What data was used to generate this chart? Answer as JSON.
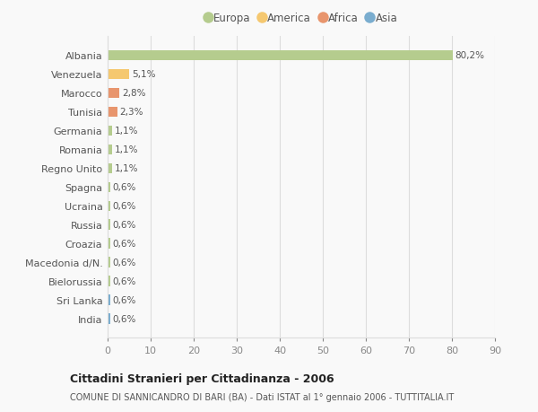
{
  "countries": [
    "Albania",
    "Venezuela",
    "Marocco",
    "Tunisia",
    "Germania",
    "Romania",
    "Regno Unito",
    "Spagna",
    "Ucraina",
    "Russia",
    "Croazia",
    "Macedonia d/N.",
    "Bielorussia",
    "Sri Lanka",
    "India"
  ],
  "values": [
    80.2,
    5.1,
    2.8,
    2.3,
    1.1,
    1.1,
    1.1,
    0.6,
    0.6,
    0.6,
    0.6,
    0.6,
    0.6,
    0.6,
    0.6
  ],
  "labels": [
    "80,2%",
    "5,1%",
    "2,8%",
    "2,3%",
    "1,1%",
    "1,1%",
    "1,1%",
    "0,6%",
    "0,6%",
    "0,6%",
    "0,6%",
    "0,6%",
    "0,6%",
    "0,6%",
    "0,6%"
  ],
  "colors": [
    "#b5cc8e",
    "#f5c870",
    "#e8956d",
    "#e8956d",
    "#b5cc8e",
    "#b5cc8e",
    "#b5cc8e",
    "#b5cc8e",
    "#b5cc8e",
    "#b5cc8e",
    "#b5cc8e",
    "#b5cc8e",
    "#b5cc8e",
    "#7aadcf",
    "#7aadcf"
  ],
  "legend_labels": [
    "Europa",
    "America",
    "Africa",
    "Asia"
  ],
  "legend_colors": [
    "#b5cc8e",
    "#f5c870",
    "#e8956d",
    "#7aadcf"
  ],
  "xlim": [
    0,
    90
  ],
  "xticks": [
    0,
    10,
    20,
    30,
    40,
    50,
    60,
    70,
    80,
    90
  ],
  "title": "Cittadini Stranieri per Cittadinanza - 2006",
  "subtitle": "COMUNE DI SANNICANDRO DI BARI (BA) - Dati ISTAT al 1° gennaio 2006 - TUTTITALIA.IT",
  "bg_color": "#f9f9f9",
  "grid_color": "#dddddd",
  "bar_height": 0.55
}
